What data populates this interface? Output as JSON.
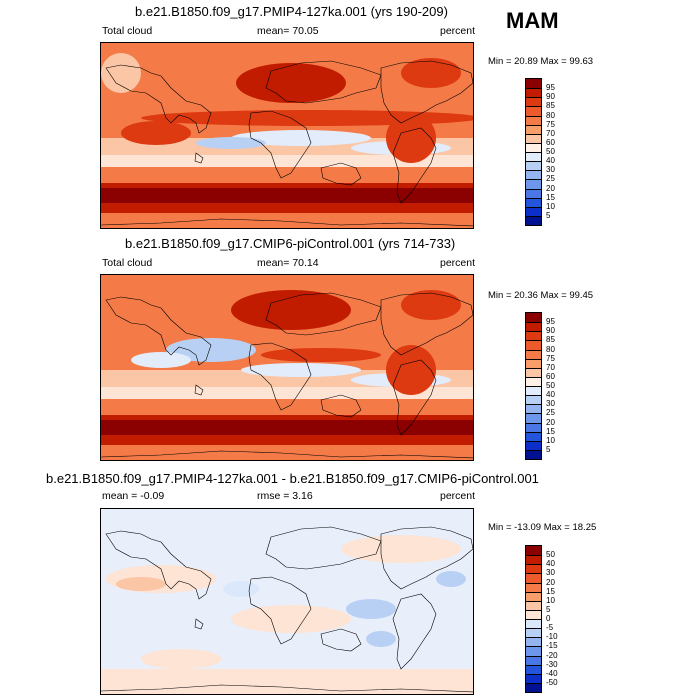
{
  "season": "MAM",
  "panels": [
    {
      "title": "b.e21.B1850.f09_g17.PMIP4-127ka.001 (yrs 190-209)",
      "left": "Total cloud",
      "center": "mean=  70.05",
      "right": "percent",
      "minmax": "Min =  20.89 Max =  99.63",
      "kind": "abs"
    },
    {
      "title": "b.e21.B1850.f09_g17.CMIP6-piControl.001 (yrs 714-733)",
      "left": "Total cloud",
      "center": "mean=  70.14",
      "right": "percent",
      "minmax": "Min =  20.36 Max =  99.45",
      "kind": "abs"
    },
    {
      "title": "b.e21.B1850.f09_g17.PMIP4-127ka.001 - b.e21.B1850.f09_g17.CMIP6-piControl.001",
      "left": "mean =  -0.09",
      "center": "rmse =   3.16",
      "right": "percent",
      "minmax": "Min = -13.09 Max =  18.25",
      "kind": "diff"
    }
  ],
  "colorbars": {
    "abs": {
      "labels": [
        "95",
        "90",
        "85",
        "80",
        "75",
        "70",
        "60",
        "50",
        "40",
        "30",
        "25",
        "20",
        "15",
        "10",
        "5"
      ],
      "colors": [
        "#8b0000",
        "#c11c00",
        "#dd3a12",
        "#ed5a2c",
        "#f47b48",
        "#f89e6a",
        "#fbc6a6",
        "#fff1e6",
        "#e2ecfb",
        "#b9d0f5",
        "#93b4ef",
        "#6e96ea",
        "#4b76e6",
        "#2454dc",
        "#0b2fc8",
        "#001291"
      ]
    },
    "diff": {
      "labels": [
        "50",
        "40",
        "30",
        "20",
        "15",
        "10",
        "5",
        "0",
        "-5",
        "-10",
        "-15",
        "-20",
        "-30",
        "-40",
        "-50"
      ],
      "colors": [
        "#8b0000",
        "#c11c00",
        "#dd3a12",
        "#ed5a2c",
        "#f47b48",
        "#f89e6a",
        "#fbc6a6",
        "#fde4d4",
        "#dbe8fb",
        "#b9d0f5",
        "#93b4ef",
        "#6e96ea",
        "#4b76e6",
        "#2454dc",
        "#0b2fc8",
        "#001291"
      ]
    }
  }
}
